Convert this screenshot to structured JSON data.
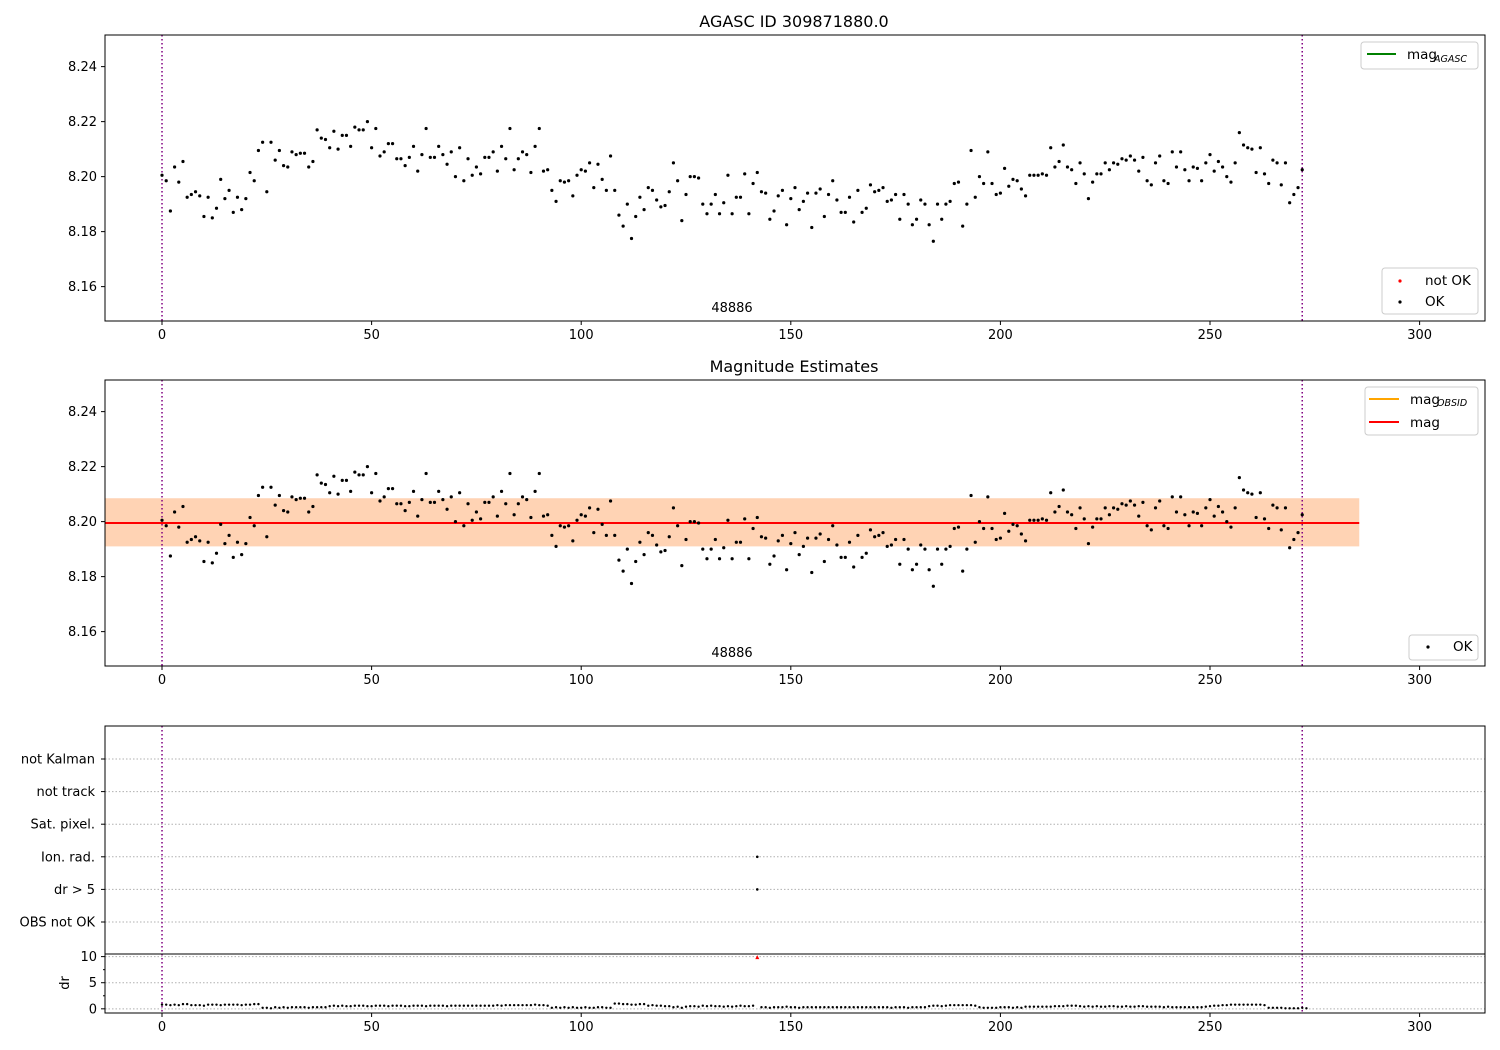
{
  "chart_data": [
    {
      "type": "scatter",
      "title": "AGASC ID 309871880.0",
      "xlim": [
        -13.6,
        315.6
      ],
      "ylim": [
        8.1475,
        8.2515
      ],
      "xticks": [
        0,
        50,
        100,
        150,
        200,
        250,
        300
      ],
      "yticks": [
        8.16,
        8.18,
        8.2,
        8.22,
        8.24
      ],
      "vlines": [
        0,
        272
      ],
      "obsid_label": "48886",
      "obsid_label_x": 136,
      "grid": false,
      "legends": [
        {
          "location": "top-right",
          "entries": [
            {
              "label": "mag",
              "subscript": "AGASC",
              "color": "#008000",
              "marker": "line"
            }
          ]
        },
        {
          "location": "bottom-right",
          "entries": [
            {
              "label": "not OK",
              "color": "#ff0000",
              "marker": "dot"
            },
            {
              "label": "OK",
              "color": "#000000",
              "marker": "dot"
            }
          ]
        }
      ]
    },
    {
      "type": "scatter",
      "title": "Magnitude Estimates",
      "xlim": [
        -13.6,
        315.6
      ],
      "ylim": [
        8.1475,
        8.2515
      ],
      "xticks": [
        0,
        50,
        100,
        150,
        200,
        250,
        300
      ],
      "yticks": [
        8.16,
        8.18,
        8.2,
        8.22,
        8.24
      ],
      "vlines": [
        0,
        272
      ],
      "obsid_label": "48886",
      "obsid_label_x": 136,
      "mag": 8.1995,
      "mag_band": [
        8.191,
        8.2085
      ],
      "mag_obsid_band": [
        8.191,
        8.2085
      ],
      "band_x": [
        -13.6,
        285.6
      ],
      "grid": false,
      "legends": [
        {
          "location": "top-right",
          "entries": [
            {
              "label": "mag",
              "subscript": "OBSID",
              "color": "#ffa500",
              "marker": "line"
            },
            {
              "label": "mag",
              "color": "#ff0000",
              "marker": "line"
            }
          ]
        },
        {
          "location": "bottom-right",
          "entries": [
            {
              "label": "OK",
              "color": "#000000",
              "marker": "dot"
            }
          ]
        }
      ]
    },
    {
      "type": "scatter",
      "title": "",
      "xlim": [
        -13.6,
        315.6
      ],
      "xticks": [
        0,
        50,
        100,
        150,
        200,
        250,
        300
      ],
      "vlines": [
        0,
        272
      ],
      "categories": [
        "not Kalman",
        "not track",
        "Sat. pixel.",
        "Ion. rad.",
        "dr > 5",
        "OBS not OK"
      ],
      "flag_points": [
        {
          "category": "Ion. rad.",
          "x": 142
        },
        {
          "category": "dr > 5",
          "x": 142
        }
      ],
      "grid": "horizontal dotted"
    },
    {
      "type": "scatter",
      "title": "",
      "ylabel": "dr",
      "xlim": [
        -13.6,
        315.6
      ],
      "ylim": [
        -0.8,
        10.5
      ],
      "xticks": [
        0,
        50,
        100,
        150,
        200,
        250,
        300
      ],
      "yticks": [
        0,
        5,
        10
      ],
      "vlines": [
        0,
        272
      ],
      "dr_outlier": {
        "x": 142,
        "y": 9.8,
        "color": "#ff0000"
      },
      "grid": "horizontal dotted"
    }
  ],
  "dr_series": [
    0.8,
    0.8,
    0.7,
    0.8,
    0.7,
    0.9,
    0.9,
    0.7,
    0.7,
    0.7,
    0.6,
    0.8,
    0.8,
    0.8,
    0.7,
    0.8,
    0.8,
    0.8,
    0.8,
    0.7,
    0.8,
    0.8,
    0.9,
    0.9,
    0.2,
    0.2,
    0.1,
    0.3,
    0.2,
    0.3,
    0.2,
    0.3,
    0.3,
    0.3,
    0.3,
    0.2,
    0.3,
    0.3,
    0.3,
    0.3,
    0.5,
    0.6,
    0.5,
    0.6,
    0.5,
    0.5,
    0.6,
    0.6,
    0.6,
    0.5,
    0.5,
    0.6,
    0.6,
    0.6,
    0.5,
    0.6,
    0.6,
    0.6,
    0.5,
    0.5,
    0.6,
    0.6,
    0.6,
    0.5,
    0.6,
    0.6,
    0.6,
    0.6,
    0.5,
    0.6,
    0.6,
    0.6,
    0.6,
    0.6,
    0.6,
    0.6,
    0.6,
    0.6,
    0.6,
    0.6,
    0.7,
    0.6,
    0.7,
    0.7,
    0.7,
    0.7,
    0.7,
    0.7,
    0.7,
    0.8,
    0.7,
    0.7,
    0.6,
    0.2,
    0.3,
    0.2,
    0.3,
    0.2,
    0.3,
    0.2,
    0.2,
    0.3,
    0.2,
    0.2,
    0.3,
    0.3,
    0.2,
    0.2,
    1.0,
    1.0,
    0.9,
    0.9,
    0.8,
    0.8,
    0.9,
    0.9,
    0.6,
    0.7,
    0.6,
    0.6,
    0.5,
    0.5,
    0.3,
    0.4,
    0.2,
    0.4,
    0.5,
    0.5,
    0.4,
    0.6,
    0.5,
    0.6,
    0.5,
    0.5,
    0.4,
    0.5,
    0.4,
    0.5,
    0.6,
    0.5,
    0.5,
    0.6,
    9.8,
    0.3,
    0.3,
    0.2,
    0.3,
    0.3,
    0.3,
    0.4,
    0.3,
    0.3,
    0.2,
    0.3,
    0.3,
    0.3,
    0.3,
    0.3,
    0.3,
    0.3,
    0.3,
    0.3,
    0.3,
    0.3,
    0.3,
    0.3,
    0.3,
    0.3,
    0.3,
    0.3,
    0.3,
    0.3,
    0.3,
    0.3,
    0.2,
    0.3,
    0.3,
    0.3,
    0.2,
    0.3,
    0.3,
    0.3,
    0.3,
    0.5,
    0.6,
    0.6,
    0.5,
    0.6,
    0.7,
    0.7,
    0.7,
    0.7,
    0.7,
    0.7,
    0.6,
    0.3,
    0.2,
    0.2,
    0.2,
    0.2,
    0.3,
    0.3,
    0.3,
    0.2,
    0.3,
    0.2,
    0.4,
    0.4,
    0.4,
    0.4,
    0.4,
    0.4,
    0.4,
    0.5,
    0.5,
    0.5,
    0.6,
    0.6,
    0.6,
    0.5,
    0.4,
    0.5,
    0.4,
    0.5,
    0.4,
    0.4,
    0.5,
    0.5,
    0.4,
    0.4,
    0.5,
    0.4,
    0.4,
    0.5,
    0.5,
    0.4,
    0.4,
    0.4,
    0.4,
    0.3,
    0.4,
    0.3,
    0.3,
    0.3,
    0.3,
    0.3,
    0.3,
    0.3,
    0.3,
    0.4,
    0.5,
    0.6,
    0.6,
    0.7,
    0.7,
    0.8,
    0.8,
    0.8,
    0.8,
    0.8,
    0.8,
    0.8,
    0.8,
    0.7,
    0.2,
    0.2,
    0.2,
    0.2,
    0.1,
    0.1,
    0.1,
    0.1,
    0.2,
    0.1
  ],
  "mag_series": [
    8.2005,
    8.1985,
    8.1875,
    8.2035,
    8.198,
    8.2055,
    8.1925,
    8.1935,
    8.1945,
    8.193,
    8.1855,
    8.1925,
    8.185,
    8.1885,
    8.199,
    8.192,
    8.195,
    8.187,
    8.1925,
    8.188,
    8.192,
    8.2015,
    8.1985,
    8.2095,
    8.2125,
    8.1945,
    8.2125,
    8.206,
    8.2095,
    8.204,
    8.2035,
    8.209,
    8.208,
    8.2085,
    8.2085,
    8.2035,
    8.2055,
    8.217,
    8.214,
    8.2135,
    8.2105,
    8.2165,
    8.21,
    8.215,
    8.215,
    8.211,
    8.218,
    8.217,
    8.217,
    8.22,
    8.2105,
    8.2175,
    8.2075,
    8.209,
    8.212,
    8.212,
    8.2065,
    8.2065,
    8.204,
    8.207,
    8.211,
    8.202,
    8.208,
    8.2175,
    8.207,
    8.207,
    8.211,
    8.208,
    8.2045,
    8.209,
    8.2,
    8.2105,
    8.1985,
    8.2065,
    8.2005,
    8.2035,
    8.201,
    8.207,
    8.207,
    8.209,
    8.202,
    8.211,
    8.2065,
    8.2175,
    8.2025,
    8.2065,
    8.209,
    8.208,
    8.2015,
    8.211,
    8.2175,
    8.202,
    8.2025,
    8.195,
    8.191,
    8.1985,
    8.198,
    8.1985,
    8.193,
    8.2005,
    8.2025,
    8.202,
    8.205,
    8.196,
    8.2045,
    8.199,
    8.195,
    8.2075,
    8.195,
    8.186,
    8.182,
    8.19,
    8.1775,
    8.1855,
    8.1925,
    8.188,
    8.196,
    8.195,
    8.1915,
    8.189,
    8.1895,
    8.1945,
    8.205,
    8.1985,
    8.184,
    8.1935,
    8.2,
    8.2,
    8.1995,
    8.19,
    8.1865,
    8.19,
    8.1935,
    8.1865,
    8.1905,
    8.2005,
    8.1865,
    8.1925,
    8.1925,
    8.201,
    8.1865,
    8.1975,
    8.2015,
    8.1945,
    8.194,
    8.1845,
    8.1875,
    8.193,
    8.195,
    8.1825,
    8.192,
    8.196,
    8.188,
    8.191,
    8.194,
    8.1815,
    8.194,
    8.1955,
    8.1855,
    8.1935,
    8.1985,
    8.1915,
    8.187,
    8.187,
    8.1925,
    8.1835,
    8.195,
    8.187,
    8.1885,
    8.197,
    8.1945,
    8.195,
    8.196,
    8.191,
    8.1915,
    8.1935,
    8.1845,
    8.1935,
    8.19,
    8.1825,
    8.1845,
    8.1915,
    8.19,
    8.1825,
    8.1765,
    8.19,
    8.1845,
    8.19,
    8.191,
    8.1975,
    8.198,
    8.182,
    8.19,
    8.2095,
    8.1925,
    8.2,
    8.1975,
    8.209,
    8.1975,
    8.1935,
    8.194,
    8.203,
    8.1965,
    8.199,
    8.1985,
    8.1955,
    8.193,
    8.2005,
    8.2005,
    8.2005,
    8.201,
    8.2005,
    8.2105,
    8.2035,
    8.2055,
    8.2115,
    8.2035,
    8.2025,
    8.1975,
    8.205,
    8.201,
    8.192,
    8.198,
    8.201,
    8.201,
    8.205,
    8.2025,
    8.205,
    8.2045,
    8.2065,
    8.206,
    8.2075,
    8.206,
    8.202,
    8.207,
    8.1985,
    8.197,
    8.205,
    8.2075,
    8.1985,
    8.1975,
    8.209,
    8.2035,
    8.209,
    8.2025,
    8.1985,
    8.2035,
    8.203,
    8.1985,
    8.205,
    8.208,
    8.202,
    8.2055,
    8.2035,
    8.2,
    8.198,
    8.205,
    8.216,
    8.2115,
    8.2105,
    8.21,
    8.2015,
    8.2105,
    8.201,
    8.1975,
    8.206,
    8.205,
    8.197,
    8.205,
    8.1905,
    8.1935,
    8.196,
    8.2025
  ]
}
